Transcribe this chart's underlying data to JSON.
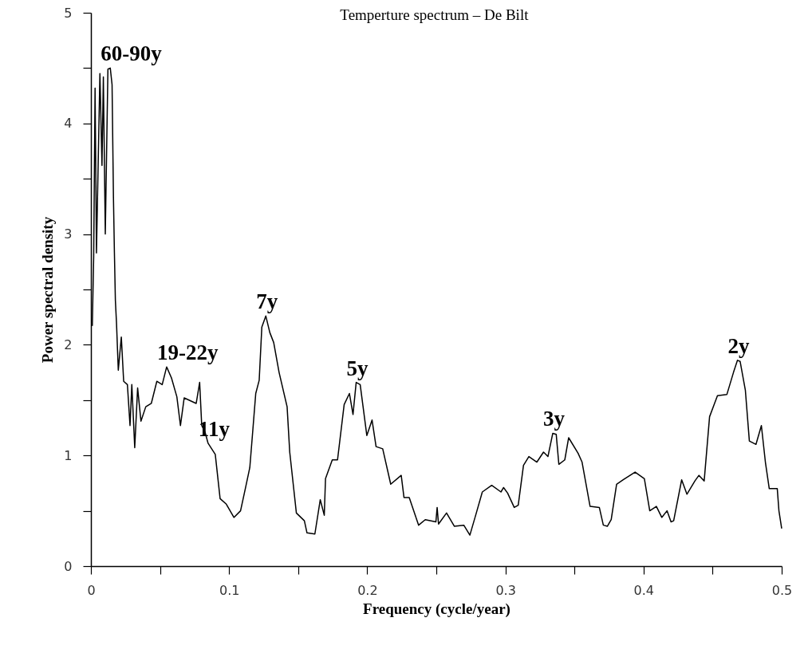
{
  "chart_data": {
    "type": "line",
    "title": "Temperture spectrum – De Bilt",
    "xlabel": "Frequency (cycle/year)",
    "ylabel": "Power spectral density",
    "xlim": [
      0,
      0.5
    ],
    "ylim": [
      0,
      5
    ],
    "xticks": [
      0,
      {
        "value": 0.05,
        "label": null
      },
      0.1,
      {
        "value": 0.15,
        "label": null
      },
      0.2,
      {
        "value": 0.25,
        "label": null
      },
      0.3,
      {
        "value": 0.35,
        "label": null
      },
      0.4,
      {
        "value": 0.45,
        "label": null
      },
      0.5
    ],
    "yticks": [
      0,
      {
        "value": 0.5,
        "label": null
      },
      1,
      {
        "value": 1.5,
        "label": null
      },
      2,
      {
        "value": 2.5,
        "label": null
      },
      3,
      {
        "value": 3.5,
        "label": null
      },
      4,
      {
        "value": 4.5,
        "label": null
      },
      5
    ],
    "grid": false,
    "marker": "none",
    "line_style": "solid",
    "series": [
      {
        "color": "#000000",
        "x": [
          0.001,
          0.002,
          0.003,
          0.004,
          0.0065,
          0.008,
          0.009,
          0.0104,
          0.0123,
          0.014,
          0.0153,
          0.0163,
          0.017,
          0.0177,
          0.0185,
          0.0198,
          0.022,
          0.0237,
          0.0264,
          0.0283,
          0.0296,
          0.0317,
          0.0338,
          0.0362,
          0.0397,
          0.0437,
          0.0477,
          0.0516,
          0.0548,
          0.0583,
          0.0622,
          0.0648,
          0.0675,
          0.0762,
          0.0787,
          0.0802,
          0.0826,
          0.0848,
          0.09,
          0.0935,
          0.098,
          0.1035,
          0.1083,
          0.1121,
          0.115,
          0.117,
          0.1193,
          0.1218,
          0.1237,
          0.1266,
          0.1295,
          0.1323,
          0.1362,
          0.142,
          0.1439,
          0.1487,
          0.1545,
          0.1564,
          0.1621,
          0.166,
          0.1689,
          0.1698,
          0.1747,
          0.1785,
          0.1833,
          0.1871,
          0.1897,
          0.192,
          0.1949,
          0.1997,
          0.2035,
          0.2064,
          0.2112,
          0.217,
          0.2246,
          0.2266,
          0.2304,
          0.2372,
          0.242,
          0.2497,
          0.2506,
          0.2516,
          0.2574,
          0.2631,
          0.2699,
          0.2743,
          0.2785,
          0.2833,
          0.2901,
          0.2968,
          0.2987,
          0.3016,
          0.3064,
          0.3093,
          0.3131,
          0.317,
          0.3228,
          0.3276,
          0.3308,
          0.3343,
          0.3368,
          0.3387,
          0.343,
          0.3458,
          0.3526,
          0.3555,
          0.3613,
          0.368,
          0.3709,
          0.3738,
          0.3766,
          0.3805,
          0.3853,
          0.3939,
          0.4006,
          0.4045,
          0.4093,
          0.4132,
          0.417,
          0.4199,
          0.4218,
          0.4276,
          0.4314,
          0.4372,
          0.4401,
          0.4439,
          0.4478,
          0.4535,
          0.4603,
          0.4651,
          0.468,
          0.4699,
          0.4737,
          0.4766,
          0.4814,
          0.4853,
          0.4882,
          0.491,
          0.4968,
          0.498,
          0.5
        ],
        "values": [
          2.17,
          2.8,
          4.32,
          2.83,
          4.45,
          3.62,
          4.42,
          3.0,
          4.49,
          4.5,
          4.35,
          3.33,
          2.83,
          2.4,
          2.2,
          1.77,
          2.07,
          1.67,
          1.64,
          1.27,
          1.64,
          1.07,
          1.61,
          1.31,
          1.44,
          1.47,
          1.67,
          1.64,
          1.8,
          1.7,
          1.53,
          1.27,
          1.52,
          1.47,
          1.66,
          1.27,
          1.21,
          1.11,
          1.01,
          0.61,
          0.56,
          0.44,
          0.5,
          0.72,
          0.89,
          1.2,
          1.56,
          1.68,
          2.16,
          2.26,
          2.11,
          2.02,
          1.75,
          1.44,
          1.03,
          0.48,
          0.41,
          0.3,
          0.29,
          0.6,
          0.46,
          0.79,
          0.96,
          0.96,
          1.46,
          1.56,
          1.37,
          1.66,
          1.64,
          1.18,
          1.32,
          1.08,
          1.06,
          0.74,
          0.82,
          0.62,
          0.62,
          0.37,
          0.42,
          0.4,
          0.53,
          0.38,
          0.48,
          0.36,
          0.37,
          0.28,
          0.46,
          0.67,
          0.73,
          0.67,
          0.71,
          0.66,
          0.53,
          0.55,
          0.91,
          0.99,
          0.94,
          1.03,
          0.99,
          1.2,
          1.19,
          0.92,
          0.96,
          1.16,
          1.02,
          0.94,
          0.54,
          0.53,
          0.37,
          0.36,
          0.42,
          0.74,
          0.78,
          0.85,
          0.79,
          0.5,
          0.54,
          0.44,
          0.5,
          0.4,
          0.41,
          0.78,
          0.65,
          0.77,
          0.82,
          0.77,
          1.35,
          1.54,
          1.55,
          1.75,
          1.86,
          1.85,
          1.59,
          1.13,
          1.1,
          1.27,
          0.94,
          0.7,
          0.7,
          0.5,
          0.34
        ]
      }
    ],
    "annotations": [
      {
        "text": "60-90y",
        "x": 0.014,
        "y": 4.5
      },
      {
        "text": "19-22y",
        "x": 0.0548,
        "y": 1.8
      },
      {
        "text": "11y",
        "x": 0.0848,
        "y": 1.11
      },
      {
        "text": "7y",
        "x": 0.1266,
        "y": 2.26
      },
      {
        "text": "5y",
        "x": 0.192,
        "y": 1.66
      },
      {
        "text": "3y",
        "x": 0.3343,
        "y": 1.2
      },
      {
        "text": "2y",
        "x": 0.468,
        "y": 1.86
      }
    ]
  }
}
